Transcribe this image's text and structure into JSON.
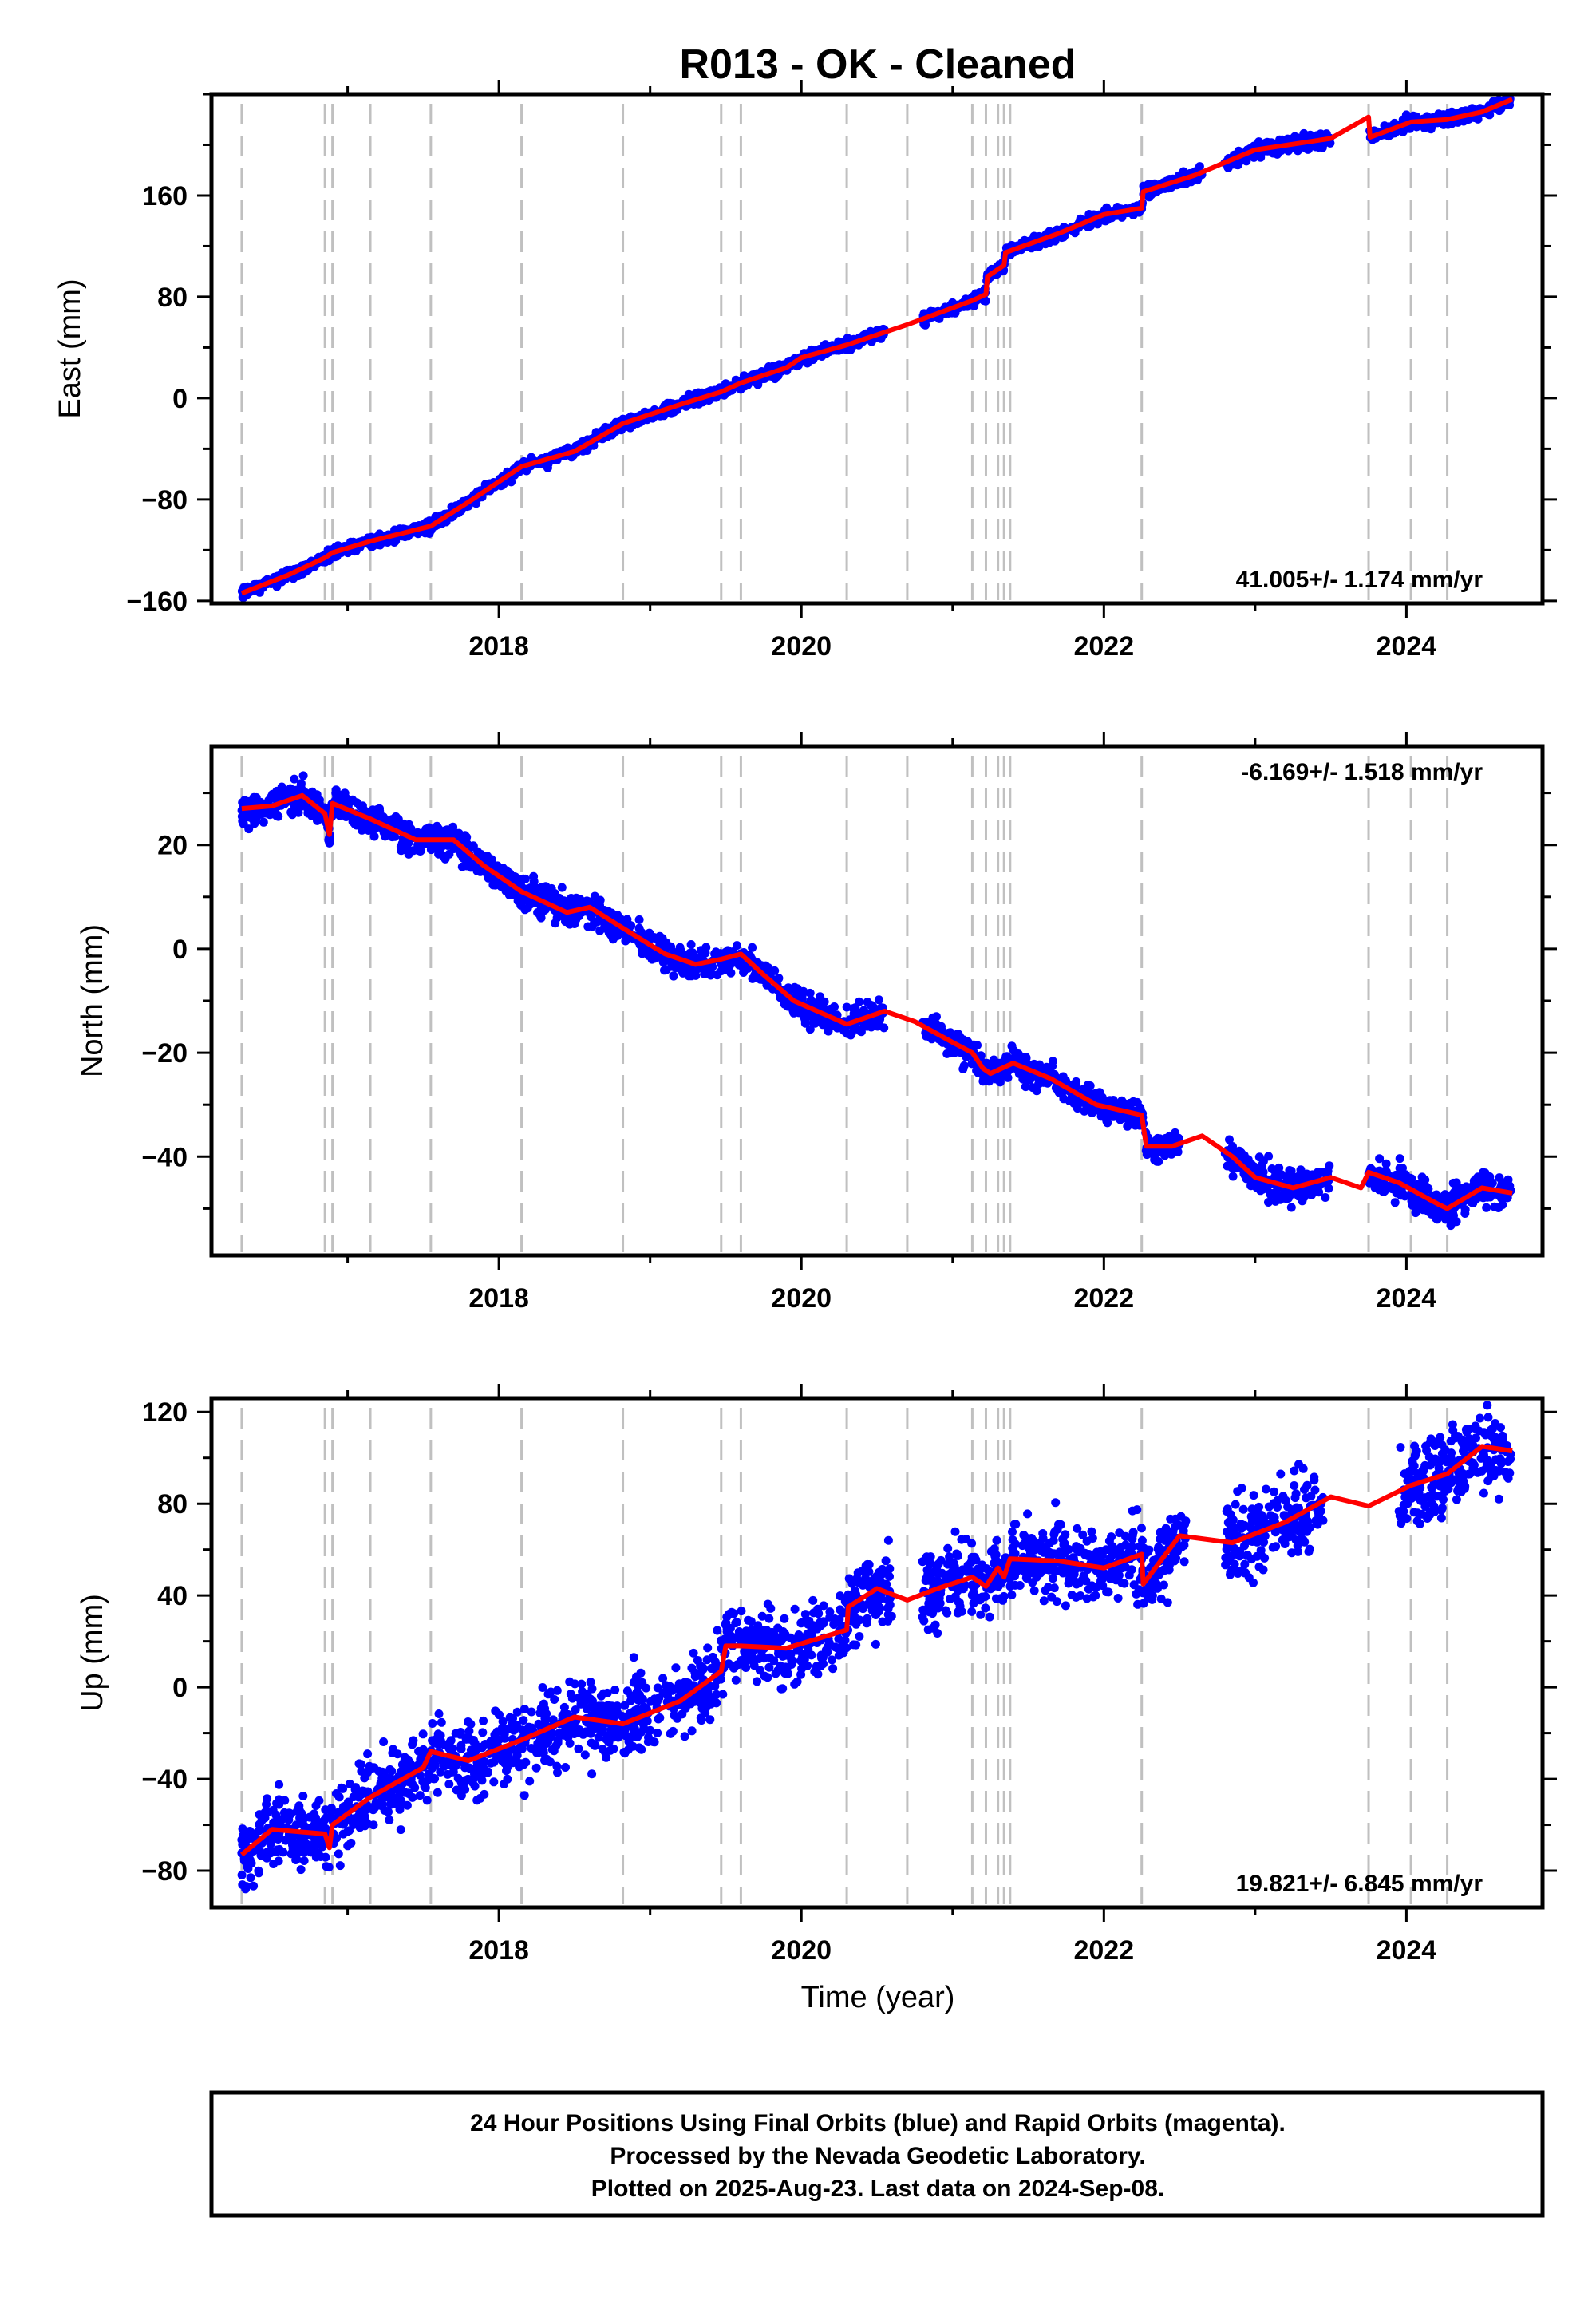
{
  "title": "R013  - OK - Cleaned",
  "xlabel": "Time (year)",
  "footer": {
    "line1": "24 Hour Positions Using Final Orbits (blue) and Rapid Orbits (magenta).",
    "line2": "Processed by the Nevada Geodetic Laboratory.",
    "line3": "Plotted on 2025-Aug-23. Last data on 2024-Sep-08."
  },
  "colors": {
    "data": "#0000ff",
    "model": "#ff0000",
    "steps": "#c0c0c0",
    "frame": "#000000"
  },
  "chart_data": [
    {
      "type": "scatter",
      "ylabel": "East (mm)",
      "rate": "41.005+/- 1.174 mm/yr",
      "rate_position": "bottom-right",
      "xlim": [
        2016.1,
        2024.9
      ],
      "ylim": [
        -162,
        240
      ],
      "xticks": [
        2018,
        2020,
        2022,
        2024
      ],
      "yticks": [
        -160,
        -80,
        0,
        80,
        160
      ],
      "grid": false,
      "steps": [
        2016.3,
        2016.85,
        2016.9,
        2017.15,
        2017.55,
        2018.15,
        2018.82,
        2019.47,
        2019.6,
        2020.3,
        2020.7,
        2021.13,
        2021.22,
        2021.3,
        2021.34,
        2021.38,
        2022.25,
        2023.75,
        2024.03,
        2024.27
      ],
      "model": [
        [
          2016.3,
          -154
        ],
        [
          2016.6,
          -140
        ],
        [
          2016.85,
          -126
        ],
        [
          2016.9,
          -122
        ],
        [
          2017.15,
          -113
        ],
        [
          2017.55,
          -101
        ],
        [
          2017.8,
          -82
        ],
        [
          2018.15,
          -54
        ],
        [
          2018.5,
          -42
        ],
        [
          2018.82,
          -20
        ],
        [
          2019.2,
          -5
        ],
        [
          2019.47,
          5
        ],
        [
          2019.6,
          12
        ],
        [
          2019.9,
          24
        ],
        [
          2020.0,
          32
        ],
        [
          2020.3,
          42
        ],
        [
          2020.7,
          58
        ],
        [
          2021.13,
          77
        ],
        [
          2021.22,
          82
        ],
        [
          2021.23,
          96
        ],
        [
          2021.34,
          105
        ],
        [
          2021.35,
          115
        ],
        [
          2021.7,
          130
        ],
        [
          2022.0,
          145
        ],
        [
          2022.25,
          150
        ],
        [
          2022.26,
          163
        ],
        [
          2022.6,
          176
        ],
        [
          2023.0,
          196
        ],
        [
          2023.5,
          205
        ],
        [
          2023.75,
          222
        ],
        [
          2023.76,
          206
        ],
        [
          2024.03,
          218
        ],
        [
          2024.27,
          220
        ],
        [
          2024.5,
          226
        ],
        [
          2024.7,
          236
        ]
      ],
      "gaps": [
        [
          2020.55,
          2020.8
        ],
        [
          2023.5,
          2023.7
        ],
        [
          2022.65,
          2022.8
        ]
      ],
      "data_segments": [
        {
          "x": [
            2016.3,
            2019.6
          ],
          "noise": 2.2
        },
        {
          "x": [
            2019.6,
            2020.55
          ],
          "noise": 2.2
        },
        {
          "x": [
            2020.8,
            2022.65
          ],
          "noise": 2.2
        },
        {
          "x": [
            2022.8,
            2023.5
          ],
          "noise": 2.8
        },
        {
          "x": [
            2023.75,
            2024.69
          ],
          "noise": 2.5
        }
      ]
    },
    {
      "type": "scatter",
      "ylabel": "North (mm)",
      "rate": "-6.169+/- 1.518 mm/yr",
      "rate_position": "top-right",
      "xlim": [
        2016.1,
        2024.9
      ],
      "ylim": [
        -59,
        39
      ],
      "xticks": [
        2018,
        2020,
        2022,
        2024
      ],
      "yticks": [
        -40,
        -20,
        0,
        20
      ],
      "grid": false,
      "steps": [
        2016.3,
        2016.85,
        2016.9,
        2017.15,
        2017.55,
        2018.15,
        2018.82,
        2019.47,
        2019.6,
        2020.3,
        2020.7,
        2021.13,
        2021.22,
        2021.3,
        2021.34,
        2021.38,
        2022.25,
        2023.75,
        2024.03,
        2024.27
      ],
      "model": [
        [
          2016.3,
          27
        ],
        [
          2016.5,
          27.5
        ],
        [
          2016.7,
          29.5
        ],
        [
          2016.85,
          26
        ],
        [
          2016.88,
          22
        ],
        [
          2016.9,
          28
        ],
        [
          2017.15,
          25
        ],
        [
          2017.45,
          21
        ],
        [
          2017.7,
          21
        ],
        [
          2017.9,
          16
        ],
        [
          2018.15,
          11
        ],
        [
          2018.45,
          7
        ],
        [
          2018.6,
          8
        ],
        [
          2018.82,
          4
        ],
        [
          2019.1,
          -1
        ],
        [
          2019.3,
          -3
        ],
        [
          2019.47,
          -2
        ],
        [
          2019.6,
          -1
        ],
        [
          2019.75,
          -5
        ],
        [
          2019.95,
          -10
        ],
        [
          2020.3,
          -14.5
        ],
        [
          2020.55,
          -12
        ],
        [
          2020.75,
          -14
        ],
        [
          2021.0,
          -18
        ],
        [
          2021.13,
          -20
        ],
        [
          2021.2,
          -23
        ],
        [
          2021.25,
          -24
        ],
        [
          2021.4,
          -22
        ],
        [
          2021.65,
          -25
        ],
        [
          2021.95,
          -30
        ],
        [
          2022.25,
          -32
        ],
        [
          2022.28,
          -38
        ],
        [
          2022.45,
          -38
        ],
        [
          2022.65,
          -36
        ],
        [
          2022.85,
          -40
        ],
        [
          2023.0,
          -44
        ],
        [
          2023.25,
          -46
        ],
        [
          2023.5,
          -44
        ],
        [
          2023.7,
          -46
        ],
        [
          2023.75,
          -43
        ],
        [
          2023.95,
          -45
        ],
        [
          2024.2,
          -49
        ],
        [
          2024.27,
          -50
        ],
        [
          2024.5,
          -46
        ],
        [
          2024.7,
          -47
        ]
      ],
      "gaps": [
        [
          2020.55,
          2020.8
        ],
        [
          2022.5,
          2022.8
        ],
        [
          2023.5,
          2023.75
        ]
      ],
      "data_segments": [
        {
          "x": [
            2016.3,
            2020.55
          ],
          "noise": 1.4
        },
        {
          "x": [
            2020.8,
            2022.5
          ],
          "noise": 1.3
        },
        {
          "x": [
            2022.8,
            2023.5
          ],
          "noise": 1.6
        },
        {
          "x": [
            2023.75,
            2024.69
          ],
          "noise": 1.8
        }
      ]
    },
    {
      "type": "scatter",
      "ylabel": "Up (mm)",
      "rate": "19.821+/- 6.845 mm/yr",
      "rate_position": "bottom-right",
      "xlim": [
        2016.1,
        2024.9
      ],
      "ylim": [
        -96,
        126
      ],
      "xticks": [
        2018,
        2020,
        2022,
        2024
      ],
      "yticks": [
        -80,
        -40,
        0,
        40,
        80,
        120
      ],
      "grid": false,
      "steps": [
        2016.3,
        2016.85,
        2016.9,
        2017.15,
        2017.55,
        2018.15,
        2018.82,
        2019.47,
        2019.6,
        2020.3,
        2020.7,
        2021.13,
        2021.22,
        2021.3,
        2021.34,
        2021.38,
        2022.25,
        2023.75,
        2024.03,
        2024.27
      ],
      "model": [
        [
          2016.3,
          -73
        ],
        [
          2016.5,
          -62
        ],
        [
          2016.85,
          -64
        ],
        [
          2016.88,
          -70
        ],
        [
          2016.9,
          -60
        ],
        [
          2017.15,
          -48
        ],
        [
          2017.5,
          -35
        ],
        [
          2017.55,
          -28
        ],
        [
          2017.8,
          -32
        ],
        [
          2018.15,
          -23
        ],
        [
          2018.5,
          -13
        ],
        [
          2018.82,
          -16
        ],
        [
          2019.2,
          -6
        ],
        [
          2019.47,
          7
        ],
        [
          2019.5,
          18
        ],
        [
          2019.6,
          18
        ],
        [
          2019.9,
          17
        ],
        [
          2020.3,
          25
        ],
        [
          2020.31,
          35
        ],
        [
          2020.5,
          43
        ],
        [
          2020.7,
          38
        ],
        [
          2020.9,
          43
        ],
        [
          2021.13,
          48
        ],
        [
          2021.22,
          44
        ],
        [
          2021.3,
          52
        ],
        [
          2021.34,
          48
        ],
        [
          2021.38,
          56
        ],
        [
          2021.7,
          55
        ],
        [
          2022.0,
          52
        ],
        [
          2022.25,
          58
        ],
        [
          2022.26,
          45
        ],
        [
          2022.5,
          66
        ],
        [
          2022.85,
          63
        ],
        [
          2023.2,
          72
        ],
        [
          2023.5,
          83
        ],
        [
          2023.75,
          79
        ],
        [
          2024.03,
          88
        ],
        [
          2024.27,
          93
        ],
        [
          2024.5,
          105
        ],
        [
          2024.7,
          103
        ]
      ],
      "gaps": [
        [
          2022.55,
          2022.8
        ],
        [
          2023.45,
          2023.95
        ]
      ],
      "data_segments": [
        {
          "x": [
            2016.3,
            2019.47
          ],
          "noise": 8
        },
        {
          "x": [
            2019.47,
            2020.6
          ],
          "noise": 8
        },
        {
          "x": [
            2020.8,
            2022.55
          ],
          "noise": 8
        },
        {
          "x": [
            2022.8,
            2023.45
          ],
          "noise": 9
        },
        {
          "x": [
            2023.95,
            2024.69
          ],
          "noise": 9
        }
      ]
    }
  ]
}
